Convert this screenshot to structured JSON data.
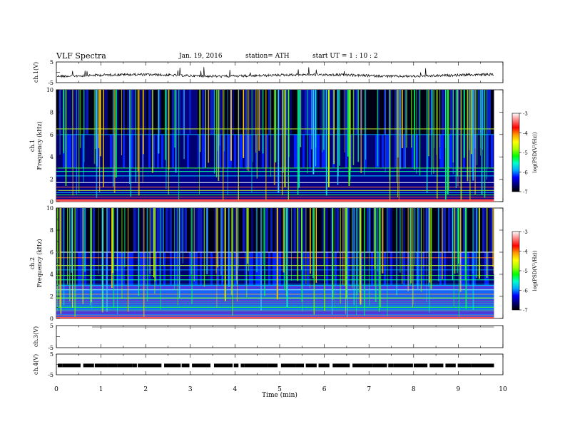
{
  "header": {
    "title": "VLF  Spectra",
    "date": "Jan. 19, 2016",
    "station": "station= ATH",
    "start": "start  UT  =   1  : 10 : 2"
  },
  "chart_data": [
    {
      "type": "line",
      "name": "ch.1 waveform",
      "ylabel": "ch.1(V)",
      "ylim": [
        -5,
        5
      ],
      "yticks": [
        "5",
        "-5"
      ],
      "xlim": [
        0,
        10
      ],
      "baseline": -1.5,
      "extent_x": [
        0,
        9.8
      ]
    },
    {
      "type": "heatmap",
      "name": "ch.1 spectrogram",
      "ylabel": "Frequency (kHz)",
      "channel_label": "ch.1",
      "ylim": [
        0,
        10
      ],
      "yticks": [
        "0",
        "2",
        "4",
        "6",
        "8",
        "10"
      ],
      "xlim": [
        0,
        10
      ],
      "extent_x": [
        0,
        9.8
      ],
      "colorbar": {
        "label": "log(PSD(V²/Hz))",
        "range": [
          -7,
          -3
        ],
        "ticks": [
          "-3",
          "-4",
          "-5",
          "-6",
          "-7"
        ],
        "colors": [
          "#000000",
          "#00007a",
          "#0000ff",
          "#00aaff",
          "#00ffcc",
          "#00ff00",
          "#aaff00",
          "#ffff00",
          "#ff9900",
          "#ff0000",
          "#ff8080",
          "#ffffff"
        ]
      },
      "bands_khz": [
        0.2,
        0.4,
        0.6,
        0.8,
        1.0,
        1.3,
        1.7,
        2.3,
        2.7,
        3.0,
        6.0,
        6.5
      ]
    },
    {
      "type": "heatmap",
      "name": "ch.2 spectrogram",
      "ylabel": "Frequency (kHz)",
      "channel_label": "ch.2",
      "ylim": [
        0,
        10
      ],
      "yticks": [
        "0",
        "2",
        "4",
        "6",
        "8",
        "10"
      ],
      "xlim": [
        0,
        10
      ],
      "extent_x": [
        0,
        9.8
      ],
      "colorbar": {
        "label": "log(PSD(V²/Hz))",
        "range": [
          -7,
          -3
        ],
        "ticks": [
          "-3",
          "-4",
          "-5",
          "-6",
          "-7"
        ]
      },
      "bands_khz": [
        0.3,
        0.7,
        1.0,
        1.4,
        1.8,
        2.2,
        2.6,
        3.0,
        3.5,
        3.9,
        4.4,
        4.8,
        5.5,
        6.0
      ]
    },
    {
      "type": "line",
      "name": "ch.3 waveform",
      "ylabel": "ch.3(V)",
      "ylim": [
        -5,
        5
      ],
      "yticks": [
        "5",
        "-5"
      ],
      "xlim": [
        0,
        10
      ],
      "baseline": 5,
      "extent_x": [
        0,
        9.8
      ]
    },
    {
      "type": "line",
      "name": "ch.4 waveform",
      "ylabel": "ch.4(V)",
      "ylim": [
        -5,
        5
      ],
      "yticks": [
        "5",
        "-5"
      ],
      "xlim": [
        0,
        10
      ],
      "baseline": -0.5,
      "extent_x": [
        0,
        9.8
      ]
    }
  ],
  "xaxis": {
    "label": "Time  (min)",
    "ticks": [
      "0",
      "1",
      "2",
      "3",
      "4",
      "5",
      "6",
      "7",
      "8",
      "9",
      "10"
    ]
  }
}
